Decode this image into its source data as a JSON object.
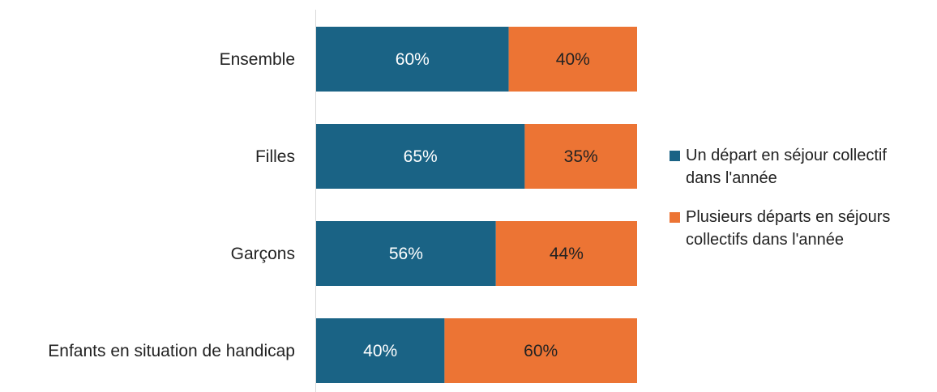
{
  "chart_data": {
    "type": "bar",
    "orientation": "horizontal",
    "stacked": "100%",
    "categories": [
      "Ensemble",
      "Filles",
      "Garçons",
      "Enfants en situation de handicap"
    ],
    "series": [
      {
        "name": "Un départ en séjour collectif\ndans l'année",
        "color": "#1a6385",
        "label_color": "#ffffff",
        "values": [
          60,
          65,
          56,
          40
        ],
        "labels": [
          "60%",
          "65%",
          "56%",
          "40%"
        ]
      },
      {
        "name": "Plusieurs départs en séjours\ncollectifs dans l'année",
        "color": "#ec7434",
        "label_color": "#222222",
        "values": [
          40,
          35,
          44,
          60
        ],
        "labels": [
          "40%",
          "35%",
          "44%",
          "60%"
        ]
      }
    ],
    "xlim": [
      0,
      100
    ],
    "grid": false,
    "legend_position": "right",
    "title": "",
    "xlabel": "",
    "ylabel": ""
  }
}
